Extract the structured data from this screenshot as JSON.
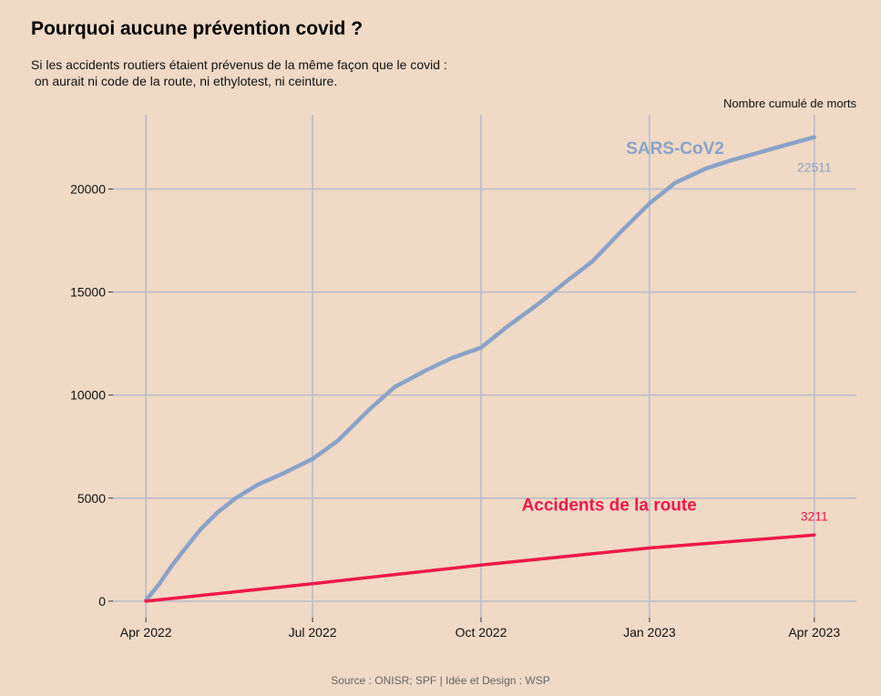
{
  "header": {
    "title": "Pourquoi aucune prévention covid ?",
    "subtitle": "Si les accidents routiers étaient prévenus de la même façon que le covid :\n on aurait ni code de la route, ni ethylotest, ni ceinture."
  },
  "caption": "Source : ONISR; SPF | Idée et Design : WSP",
  "colors": {
    "background": "#f0d9c5",
    "grid": "#b9bcc7",
    "covid": "#8aa2c8",
    "road": "#f0184a"
  },
  "chart_data": {
    "type": "line",
    "ylabel": "Nombre cumulé de morts",
    "xlim": [
      "2022-03-14",
      "2023-04-24"
    ],
    "ylim": [
      -800,
      23600
    ],
    "x_ticks": [
      {
        "date": "2022-04-01",
        "label": "Apr 2022"
      },
      {
        "date": "2022-07-01",
        "label": "Jul 2022"
      },
      {
        "date": "2022-10-01",
        "label": "Oct 2022"
      },
      {
        "date": "2023-01-01",
        "label": "Jan 2023"
      },
      {
        "date": "2023-04-01",
        "label": "Apr 2023"
      }
    ],
    "y_ticks": [
      {
        "value": 0,
        "label": "0"
      },
      {
        "value": 5000,
        "label": "5000"
      },
      {
        "value": 10000,
        "label": "10000"
      },
      {
        "value": 15000,
        "label": "15000"
      },
      {
        "value": 20000,
        "label": "20000"
      }
    ],
    "grid": true,
    "series": [
      {
        "name": "SARS-CoV2",
        "end_label": "22511",
        "x": [
          "2022-04-01",
          "2022-04-08",
          "2022-04-15",
          "2022-04-22",
          "2022-05-01",
          "2022-05-10",
          "2022-05-20",
          "2022-06-01",
          "2022-06-15",
          "2022-07-01",
          "2022-07-15",
          "2022-08-01",
          "2022-08-15",
          "2022-09-01",
          "2022-09-15",
          "2022-10-01",
          "2022-10-15",
          "2022-11-01",
          "2022-11-15",
          "2022-12-01",
          "2022-12-15",
          "2023-01-01",
          "2023-01-15",
          "2023-02-01",
          "2023-02-15",
          "2023-03-01",
          "2023-03-15",
          "2023-04-01"
        ],
        "y": [
          50,
          800,
          1700,
          2500,
          3500,
          4300,
          5000,
          5650,
          6200,
          6900,
          7800,
          9300,
          10400,
          11200,
          11800,
          12300,
          13300,
          14400,
          15400,
          16500,
          17800,
          19300,
          20300,
          21000,
          21400,
          21750,
          22100,
          22511
        ]
      },
      {
        "name": "Accidents de la route",
        "end_label": "3211",
        "x": [
          "2022-04-01",
          "2022-07-01",
          "2022-10-01",
          "2023-01-01",
          "2023-04-01"
        ],
        "y": [
          0,
          850,
          1750,
          2580,
          3211
        ]
      }
    ]
  }
}
